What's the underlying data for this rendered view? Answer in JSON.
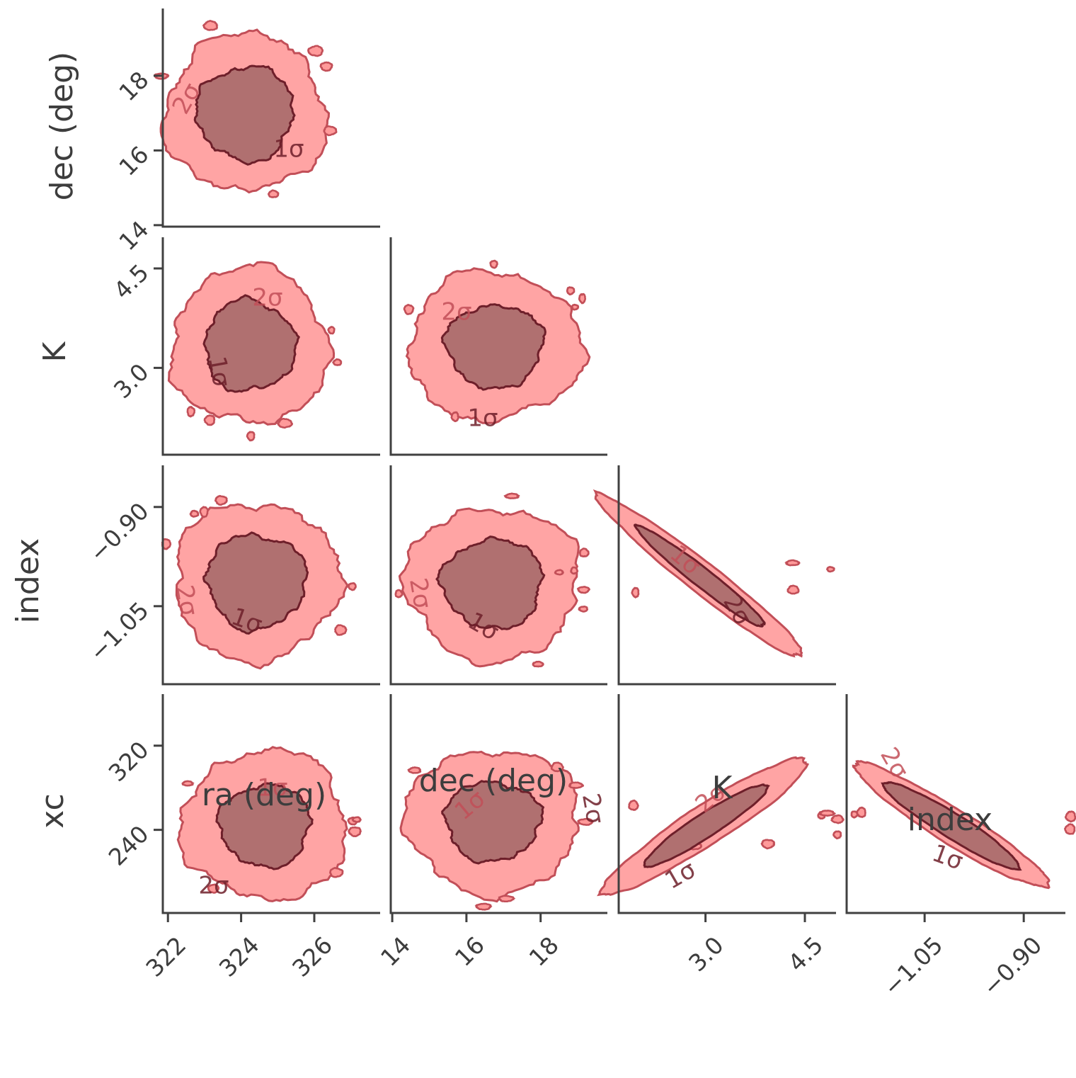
{
  "chart_data": {
    "type": "corner",
    "parameters": [
      {
        "label": "ra (deg)",
        "lim": [
          321.86,
          327.8
        ],
        "ticks": [
          322,
          324,
          326
        ]
      },
      {
        "label": "dec (deg)",
        "lim": [
          13.96,
          19.8
        ],
        "ticks": [
          14,
          16,
          18
        ]
      },
      {
        "label": "K",
        "lim": [
          1.69,
          4.97
        ],
        "ticks": [
          {
            "value": 3,
            "label": "3.0"
          },
          {
            "value": 4.5,
            "label": "4.5"
          }
        ]
      },
      {
        "label": "index",
        "lim": [
          -1.168,
          -0.837
        ],
        "ticks": [
          {
            "value": -1.05,
            "label": "−1.05"
          },
          {
            "value": -0.9,
            "label": "−0.90"
          }
        ]
      },
      {
        "label": "xc",
        "lim": [
          161,
          369
        ],
        "ticks": [
          240,
          320
        ]
      }
    ],
    "contour_labels": [
      [
        "2σ",
        "1σ"
      ],
      [
        "2σ",
        "1σ"
      ],
      [
        "2σ",
        "1σ"
      ],
      [
        "2σ",
        "1σ"
      ],
      [
        "2σ",
        "1σ"
      ],
      [
        "1σ",
        "2σ"
      ],
      [
        "1σ",
        "2σ"
      ],
      [
        "1σ",
        "2σ"
      ],
      [
        "2σ",
        "1σ"
      ],
      [
        "2σ",
        "1σ"
      ]
    ],
    "colors": {
      "outer": "#ff9a9a",
      "outer_edge": "#c24f58",
      "inner": "#b07070",
      "inner_edge": "#6e1f2a",
      "axis": "#404040"
    }
  }
}
